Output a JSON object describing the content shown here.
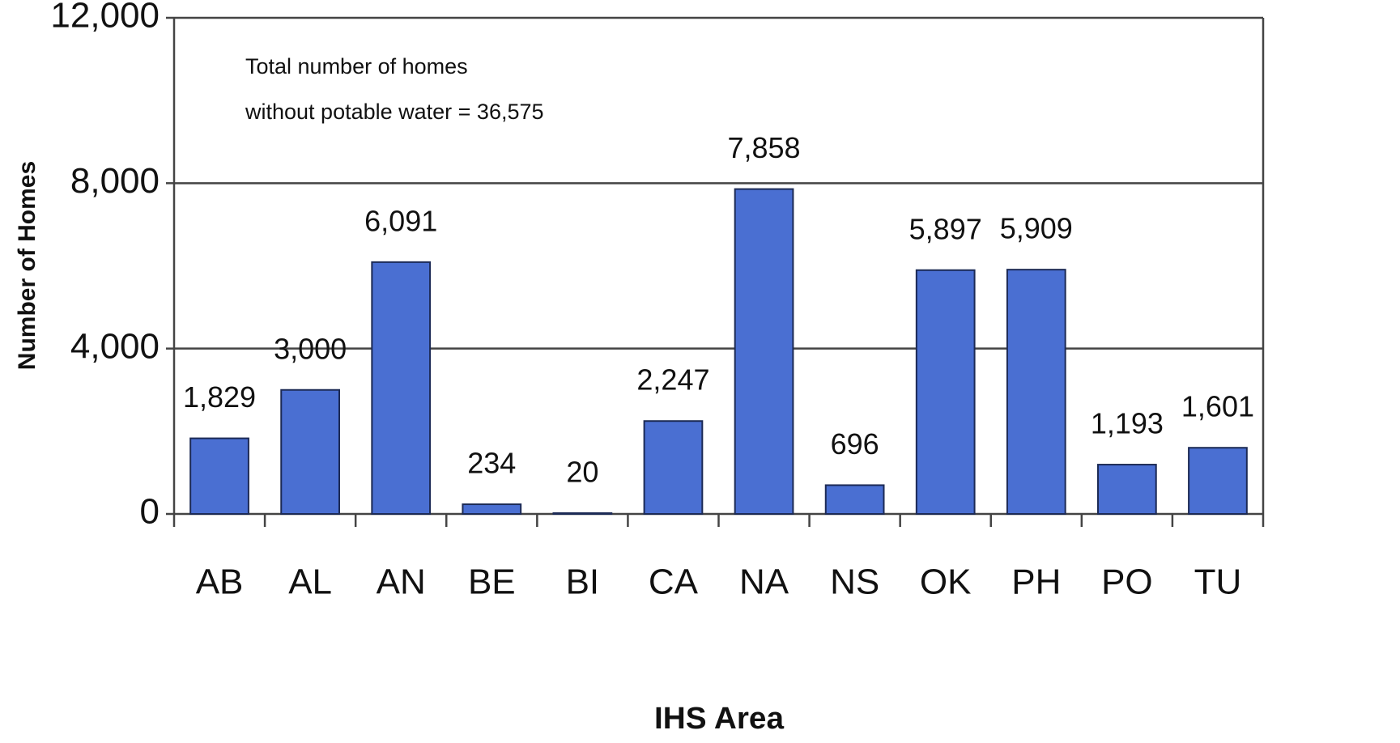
{
  "chart_data": {
    "type": "bar",
    "xlabel": "IHS Area",
    "ylabel": "Number of Homes",
    "annotation": [
      "Total number of homes",
      "without potable water = 36,575"
    ],
    "categories": [
      "AB",
      "AL",
      "AN",
      "BE",
      "BI",
      "CA",
      "NA",
      "NS",
      "OK",
      "PH",
      "PO",
      "TU"
    ],
    "values": [
      1829,
      3000,
      6091,
      234,
      20,
      2247,
      7858,
      696,
      5897,
      5909,
      1193,
      1601
    ],
    "value_labels": [
      "1,829",
      "3,000",
      "6,091",
      "234",
      "20",
      "2,247",
      "7,858",
      "696",
      "5,897",
      "5,909",
      "1,193",
      "1,601"
    ],
    "color": "#4a6fd2",
    "ylim": [
      0,
      12000
    ],
    "yticks": [
      0,
      {
        "value": 4000,
        "label": "4,000"
      },
      {
        "value": 8000,
        "label": "8,000"
      },
      {
        "value": 12000,
        "label": "12,000"
      }
    ],
    "grid": true
  }
}
